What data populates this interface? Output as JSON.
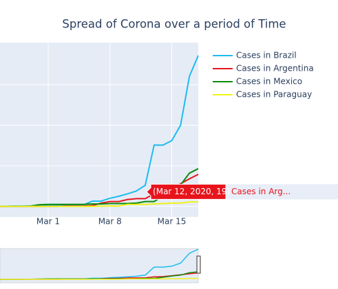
{
  "chart_data": {
    "type": "line",
    "title": "Spread of Corona over a period of Time",
    "x": [
      "2020-02-24",
      "2020-02-25",
      "2020-02-26",
      "2020-02-27",
      "2020-02-28",
      "2020-02-29",
      "2020-03-01",
      "2020-03-02",
      "2020-03-03",
      "2020-03-04",
      "2020-03-05",
      "2020-03-06",
      "2020-03-07",
      "2020-03-08",
      "2020-03-09",
      "2020-03-10",
      "2020-03-11",
      "2020-03-12",
      "2020-03-13",
      "2020-03-14",
      "2020-03-15",
      "2020-03-16",
      "2020-03-17",
      "2020-03-18"
    ],
    "series": [
      {
        "name": "Cases in Brazil",
        "color": "#1cbcf0",
        "values": [
          0,
          0,
          1,
          1,
          1,
          2,
          2,
          2,
          2,
          4,
          4,
          13,
          13,
          20,
          25,
          31,
          38,
          52,
          151,
          151,
          162,
          200,
          321,
          372
        ]
      },
      {
        "name": "Cases in Argentina",
        "color": "#e8141c",
        "values": [
          0,
          0,
          0,
          0,
          0,
          0,
          0,
          0,
          1,
          1,
          1,
          2,
          8,
          12,
          12,
          17,
          19,
          19,
          31,
          34,
          45,
          56,
          68,
          79
        ]
      },
      {
        "name": "Cases in Mexico",
        "color": "#0a8a0a",
        "values": [
          0,
          0,
          0,
          0,
          1,
          4,
          5,
          5,
          5,
          5,
          5,
          6,
          6,
          7,
          7,
          7,
          8,
          12,
          12,
          26,
          41,
          53,
          82,
          93
        ]
      },
      {
        "name": "Cases in Paraguay",
        "color": "#f2f21a",
        "values": [
          0,
          0,
          0,
          0,
          0,
          0,
          0,
          0,
          0,
          0,
          0,
          0,
          1,
          1,
          1,
          5,
          5,
          5,
          6,
          7,
          8,
          8,
          11,
          11
        ]
      }
    ],
    "xlim": [
      "2020-02-24",
      "2020-03-18"
    ],
    "xticks": [
      {
        "value": "2020-03-01",
        "label": "Mar 1"
      },
      {
        "value": "2020-03-08",
        "label": "Mar 8"
      },
      {
        "value": "2020-03-15",
        "label": "Mar 15"
      }
    ],
    "ylim": [
      -26,
      404
    ],
    "yticks": [
      0,
      100,
      200,
      300
    ],
    "grid": true,
    "legend": "right",
    "hover": {
      "label": "(Mar 12, 2020, 19)",
      "name": "Cases in Arg..."
    }
  }
}
